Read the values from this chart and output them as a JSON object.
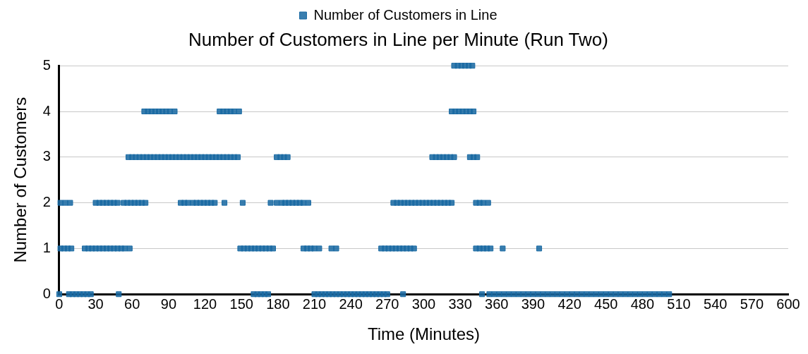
{
  "chart_data": {
    "type": "scatter",
    "title": "Number of Customers in Line per Minute (Run Two)",
    "xlabel": "Time (Minutes)",
    "ylabel": "Number of Customers",
    "xlim": [
      0,
      600
    ],
    "xticks": [
      0,
      30,
      60,
      90,
      120,
      150,
      180,
      210,
      240,
      270,
      300,
      330,
      360,
      390,
      420,
      450,
      480,
      510,
      540,
      570,
      600
    ],
    "ylim": [
      0,
      5
    ],
    "yticks": [
      0,
      1,
      2,
      3,
      4,
      5
    ],
    "grid": "y",
    "legend": "top",
    "marker": "square",
    "series": [
      {
        "name": "Number of Customers in Line",
        "color": "#1a6aa3",
        "x": [
          0,
          8,
          11,
          14,
          17,
          20,
          23,
          26,
          49,
          160,
          163,
          166,
          169,
          172,
          210,
          213,
          216,
          219,
          222,
          225,
          228,
          231,
          234,
          237,
          240,
          243,
          246,
          249,
          252,
          255,
          258,
          261,
          264,
          267,
          270,
          283,
          348,
          354,
          358,
          362,
          366,
          370,
          374,
          378,
          382,
          386,
          390,
          394,
          398,
          402,
          406,
          410,
          414,
          418,
          422,
          426,
          430,
          434,
          438,
          442,
          446,
          450,
          454,
          458,
          462,
          466,
          470,
          474,
          478,
          482,
          486,
          490,
          494,
          498,
          502,
          1,
          4,
          7,
          10,
          21,
          24,
          27,
          30,
          33,
          36,
          39,
          42,
          45,
          48,
          51,
          54,
          58,
          149,
          152,
          155,
          158,
          161,
          164,
          167,
          170,
          173,
          176,
          201,
          204,
          207,
          210,
          214,
          224,
          228,
          265,
          268,
          271,
          274,
          277,
          280,
          283,
          286,
          289,
          292,
          343,
          346,
          349,
          352,
          355,
          365,
          395,
          1,
          5,
          9,
          30,
          33,
          36,
          39,
          42,
          45,
          48,
          53,
          56,
          59,
          62,
          65,
          68,
          71,
          100,
          103,
          106,
          110,
          113,
          116,
          119,
          122,
          125,
          128,
          136,
          151,
          174,
          179,
          183,
          186,
          189,
          192,
          195,
          198,
          201,
          205,
          275,
          278,
          281,
          284,
          287,
          290,
          293,
          296,
          299,
          302,
          305,
          308,
          311,
          314,
          317,
          320,
          323,
          343,
          346,
          349,
          353,
          57,
          60,
          63,
          66,
          69,
          72,
          75,
          78,
          81,
          84,
          87,
          90,
          93,
          96,
          99,
          102,
          105,
          108,
          111,
          114,
          117,
          120,
          123,
          126,
          129,
          132,
          135,
          138,
          141,
          144,
          147,
          179,
          182,
          185,
          188,
          307,
          310,
          313,
          316,
          319,
          322,
          325,
          338,
          341,
          344,
          70,
          73,
          76,
          79,
          82,
          85,
          88,
          91,
          95,
          132,
          135,
          138,
          141,
          144,
          148,
          323,
          326,
          329,
          332,
          335,
          338,
          341,
          325,
          328,
          331,
          334,
          337,
          340
        ],
        "values": [
          0,
          0,
          0,
          0,
          0,
          0,
          0,
          0,
          0,
          0,
          0,
          0,
          0,
          0,
          0,
          0,
          0,
          0,
          0,
          0,
          0,
          0,
          0,
          0,
          0,
          0,
          0,
          0,
          0,
          0,
          0,
          0,
          0,
          0,
          0,
          0,
          0,
          0,
          0,
          0,
          0,
          0,
          0,
          0,
          0,
          0,
          0,
          0,
          0,
          0,
          0,
          0,
          0,
          0,
          0,
          0,
          0,
          0,
          0,
          0,
          0,
          0,
          0,
          0,
          0,
          0,
          0,
          0,
          0,
          0,
          0,
          0,
          0,
          0,
          0,
          1,
          1,
          1,
          1,
          1,
          1,
          1,
          1,
          1,
          1,
          1,
          1,
          1,
          1,
          1,
          1,
          1,
          1,
          1,
          1,
          1,
          1,
          1,
          1,
          1,
          1,
          1,
          1,
          1,
          1,
          1,
          1,
          1,
          1,
          1,
          1,
          1,
          1,
          1,
          1,
          1,
          1,
          1,
          1,
          1,
          1,
          1,
          1,
          1,
          1,
          1,
          2,
          2,
          2,
          2,
          2,
          2,
          2,
          2,
          2,
          2,
          2,
          2,
          2,
          2,
          2,
          2,
          2,
          2,
          2,
          2,
          2,
          2,
          2,
          2,
          2,
          2,
          2,
          2,
          2,
          2,
          2,
          2,
          2,
          2,
          2,
          2,
          2,
          2,
          2,
          2,
          2,
          2,
          2,
          2,
          2,
          2,
          2,
          2,
          2,
          2,
          2,
          2,
          2,
          2,
          2,
          2,
          2,
          2,
          2,
          2,
          3,
          3,
          3,
          3,
          3,
          3,
          3,
          3,
          3,
          3,
          3,
          3,
          3,
          3,
          3,
          3,
          3,
          3,
          3,
          3,
          3,
          3,
          3,
          3,
          3,
          3,
          3,
          3,
          3,
          3,
          3,
          3,
          3,
          3,
          3,
          3,
          3,
          3,
          3,
          3,
          3,
          3,
          3,
          3,
          3,
          4,
          4,
          4,
          4,
          4,
          4,
          4,
          4,
          4,
          4,
          4,
          4,
          4,
          4,
          4,
          4,
          4,
          4,
          4,
          4,
          4,
          4,
          5,
          5,
          5,
          5,
          5,
          5
        ]
      }
    ]
  }
}
